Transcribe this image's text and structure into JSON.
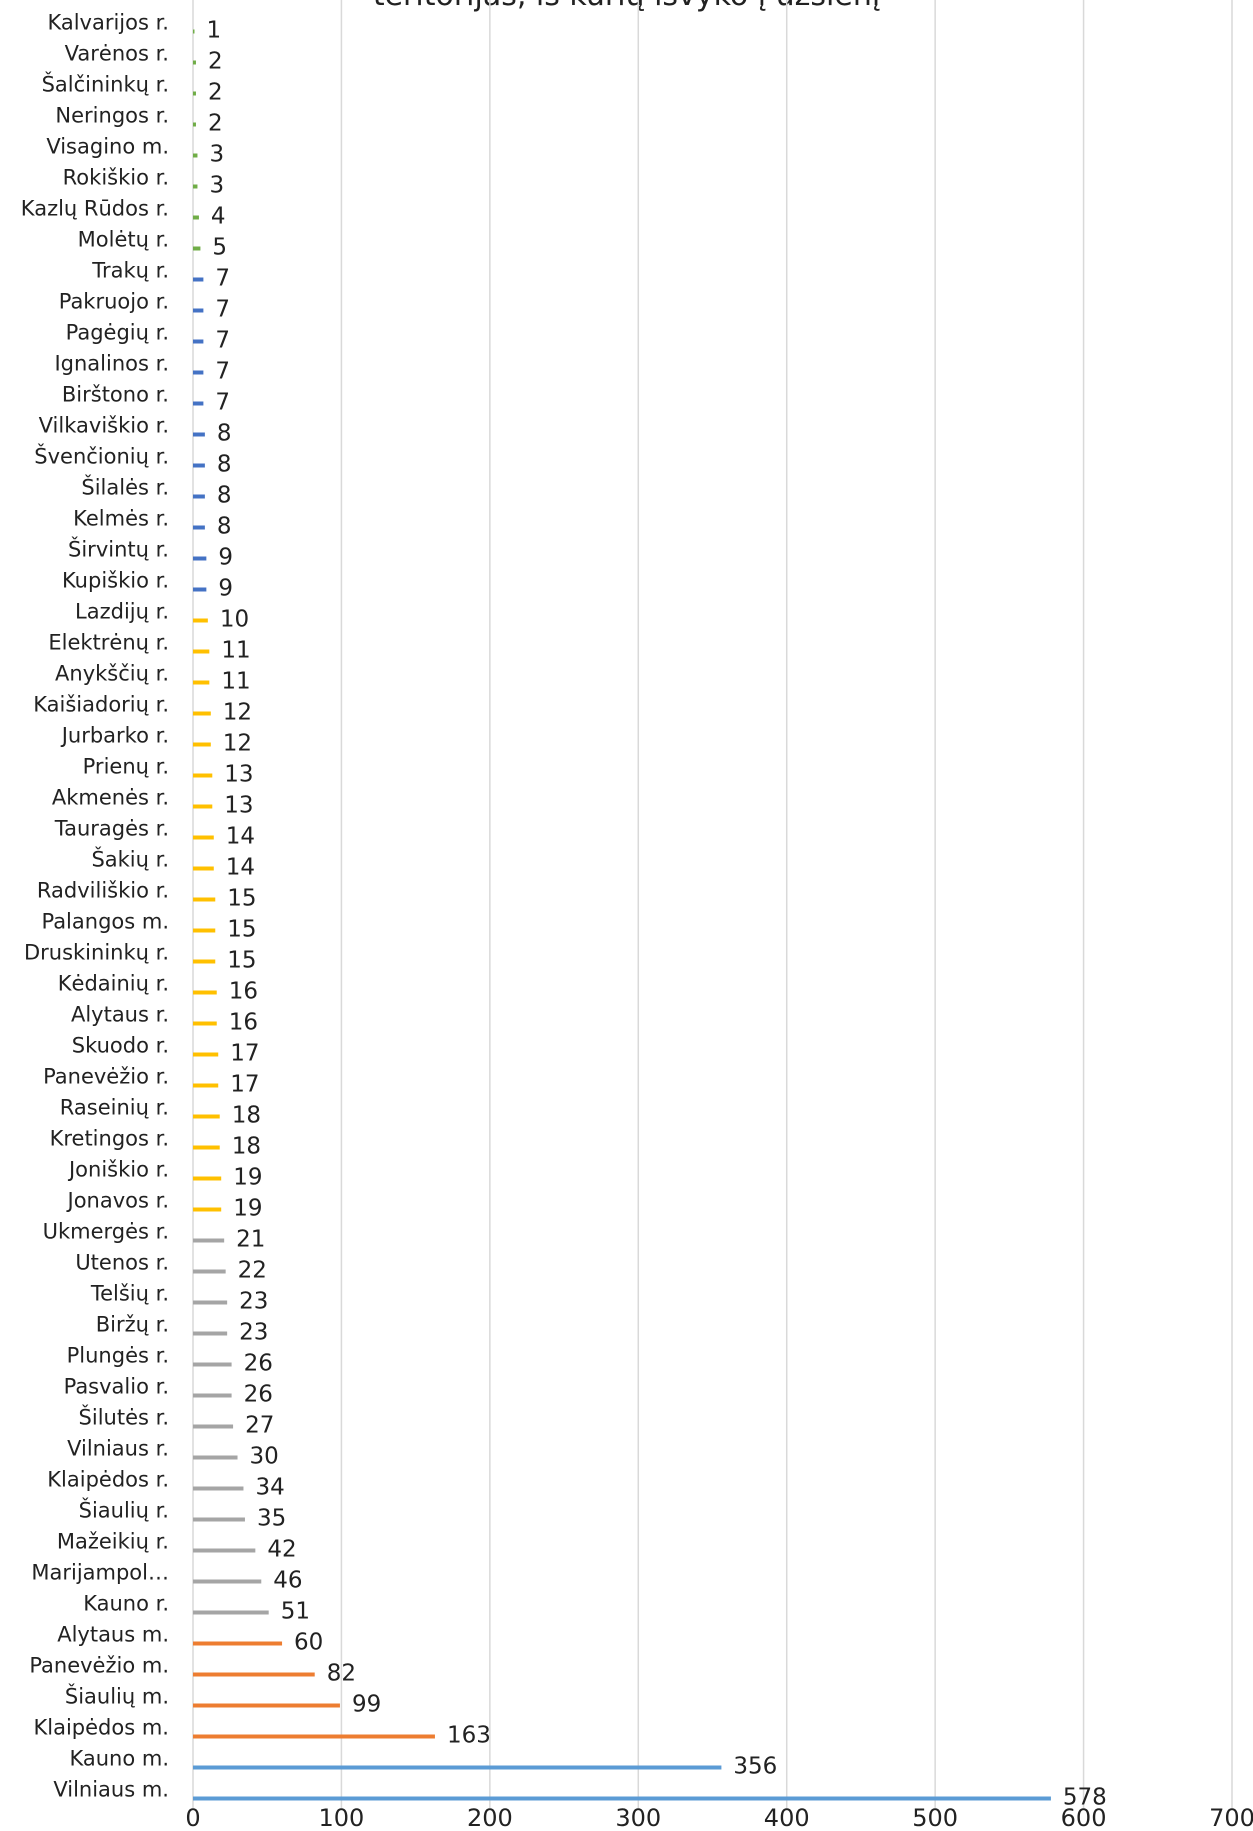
{
  "chart_data": {
    "type": "bar",
    "orientation": "horizontal",
    "title": "teritorijas, iš kurių išvyko į užsienį",
    "xlim": [
      0,
      700
    ],
    "xticks": [
      0,
      100,
      200,
      300,
      400,
      500,
      600,
      700
    ],
    "grid": true,
    "legend": "none",
    "categories": [
      "Kalvarijos r.",
      "Varėnos r.",
      "Šalčininkų r.",
      "Neringos r.",
      "Visagino m.",
      "Rokiškio r.",
      "Kazlų Rūdos r.",
      "Molėtų r.",
      "Trakų r.",
      "Pakruojo r.",
      "Pagėgių r.",
      "Ignalinos r.",
      "Birštono r.",
      "Vilkaviškio r.",
      "Švenčionių r.",
      "Šilalės r.",
      "Kelmės r.",
      "Širvintų r.",
      "Kupiškio r.",
      "Lazdijų r.",
      "Elektrėnų r.",
      "Anykščių r.",
      "Kaišiadorių r.",
      "Jurbarko r.",
      "Prienų r.",
      "Akmenės r.",
      "Tauragės r.",
      "Šakių r.",
      "Radviliškio r.",
      "Palangos m.",
      "Druskininkų r.",
      "Kėdainių r.",
      "Alytaus r.",
      "Skuodo r.",
      "Panevėžio r.",
      "Raseinių r.",
      "Kretingos r.",
      "Joniškio r.",
      "Jonavos r.",
      "Ukmergės r.",
      "Utenos r.",
      "Telšių r.",
      "Biržų r.",
      "Plungės r.",
      "Pasvalio r.",
      "Šilutės r.",
      "Vilniaus r.",
      "Klaipėdos r.",
      "Šiaulių r.",
      "Mažeikių r.",
      "Marijampol…",
      "Kauno r.",
      "Alytaus m.",
      "Panevėžio m.",
      "Šiaulių m.",
      "Klaipėdos m.",
      "Kauno m.",
      "Vilniaus m."
    ],
    "values": [
      1,
      2,
      2,
      2,
      3,
      3,
      4,
      5,
      7,
      7,
      7,
      7,
      7,
      8,
      8,
      8,
      8,
      9,
      9,
      10,
      11,
      11,
      12,
      12,
      13,
      13,
      14,
      14,
      15,
      15,
      15,
      16,
      16,
      17,
      17,
      18,
      18,
      19,
      19,
      21,
      22,
      23,
      23,
      26,
      26,
      27,
      30,
      34,
      35,
      42,
      46,
      51,
      60,
      82,
      99,
      163,
      356,
      578
    ],
    "bar_colors": [
      "#70AD47",
      "#70AD47",
      "#70AD47",
      "#70AD47",
      "#70AD47",
      "#70AD47",
      "#70AD47",
      "#70AD47",
      "#4472C4",
      "#4472C4",
      "#4472C4",
      "#4472C4",
      "#4472C4",
      "#4472C4",
      "#4472C4",
      "#4472C4",
      "#4472C4",
      "#4472C4",
      "#4472C4",
      "#FFC000",
      "#FFC000",
      "#FFC000",
      "#FFC000",
      "#FFC000",
      "#FFC000",
      "#FFC000",
      "#FFC000",
      "#FFC000",
      "#FFC000",
      "#FFC000",
      "#FFC000",
      "#FFC000",
      "#FFC000",
      "#FFC000",
      "#FFC000",
      "#FFC000",
      "#FFC000",
      "#FFC000",
      "#FFC000",
      "#A5A5A5",
      "#A5A5A5",
      "#A5A5A5",
      "#A5A5A5",
      "#A5A5A5",
      "#A5A5A5",
      "#A5A5A5",
      "#A5A5A5",
      "#A5A5A5",
      "#A5A5A5",
      "#A5A5A5",
      "#A5A5A5",
      "#A5A5A5",
      "#ED7D31",
      "#ED7D31",
      "#ED7D31",
      "#ED7D31",
      "#5B9BD5",
      "#5B9BD5"
    ]
  }
}
